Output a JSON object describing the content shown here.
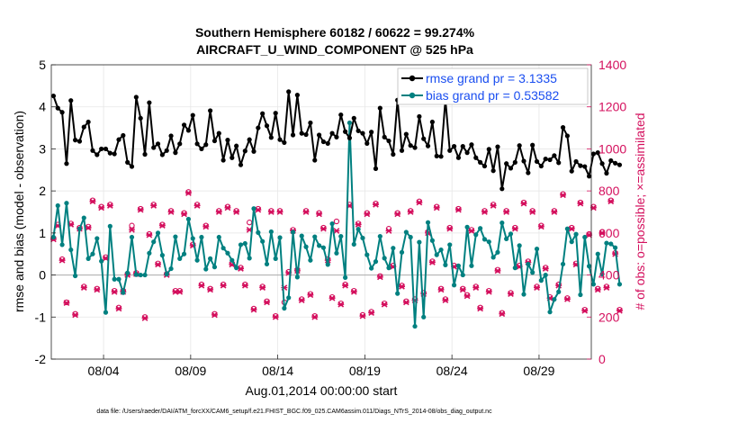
{
  "chart_data": {
    "type": "line",
    "title_line1": "Southern Hemisphere 60182 / 60622 = 99.274%",
    "title_line2": "AIRCRAFT_U_WIND_COMPONENT @ 525 hPa",
    "xlabel": "Aug.01,2014 00:00:00 start",
    "ylabel_left": "rmse and bias (model - observation)",
    "ylabel_right": "# of obs: o=possible; ×=assimilated",
    "footer": "data file: /Users/raeder/DAI/ATM_forcXX/CAM6_setup/f.e21.FHIST_BGC.f09_025.CAM6assim.011/Diags_NTrS_2014-08/obs_diag_output.nc",
    "ylim_left": [
      -2,
      5
    ],
    "ylim_right": [
      0,
      1400
    ],
    "yticks_left": [
      "-2",
      "-1",
      "0",
      "1",
      "2",
      "3",
      "4",
      "5"
    ],
    "yticks_right": [
      "0",
      "200",
      "400",
      "600",
      "800",
      "1000",
      "1200",
      "1400"
    ],
    "xlim_days": [
      1.0,
      32.0
    ],
    "xticks": [
      {
        "day": 4,
        "label": "08/04"
      },
      {
        "day": 9,
        "label": "08/09"
      },
      {
        "day": 14,
        "label": "08/14"
      },
      {
        "day": 19,
        "label": "08/19"
      },
      {
        "day": 24,
        "label": "08/24"
      },
      {
        "day": 29,
        "label": "08/29"
      }
    ],
    "time_start_day": 1.125,
    "time_step_days": 0.25,
    "grid": true,
    "legend_location": "top-right",
    "series": [
      {
        "name": "rmse grand pr = 3.1335",
        "color": "#000000",
        "axis": "left",
        "values": [
          4.26,
          3.97,
          3.87,
          2.65,
          4.15,
          3.21,
          3.18,
          3.52,
          3.64,
          2.96,
          2.86,
          3.0,
          3.0,
          2.9,
          2.88,
          3.22,
          3.32,
          2.68,
          2.58,
          4.23,
          3.73,
          2.87,
          4.1,
          3.03,
          3.12,
          2.86,
          2.96,
          3.31,
          2.91,
          3.12,
          3.57,
          3.44,
          3.8,
          3.12,
          3.0,
          3.1,
          3.91,
          3.19,
          3.37,
          2.73,
          3.21,
          2.79,
          3.07,
          2.62,
          2.95,
          3.22,
          2.94,
          3.5,
          3.84,
          3.55,
          3.27,
          3.85,
          3.22,
          3.15,
          4.36,
          3.33,
          4.28,
          3.37,
          3.34,
          3.62,
          2.73,
          3.33,
          3.17,
          3.13,
          3.37,
          3.28,
          3.81,
          3.41,
          3.26,
          3.73,
          3.43,
          3.37,
          3.13,
          3.4,
          2.53,
          3.97,
          3.28,
          3.19,
          2.87,
          4.16,
          2.96,
          3.35,
          3.08,
          3.03,
          3.77,
          3.24,
          3.07,
          3.64,
          2.83,
          2.82,
          4.18,
          2.96,
          3.06,
          2.79,
          3.06,
          2.91,
          3.1,
          2.79,
          2.68,
          2.59,
          2.99,
          2.48,
          3.05,
          2.05,
          2.65,
          2.54,
          2.68,
          3.08,
          2.71,
          2.43,
          3.09,
          2.7,
          2.59,
          2.76,
          2.74,
          2.84,
          2.67,
          3.51,
          3.31,
          2.47,
          2.7,
          2.6,
          2.58,
          2.35,
          2.88,
          2.91,
          2.65,
          2.42,
          2.72,
          2.66,
          2.62
        ]
      },
      {
        "name": "bias grand pr = 0.53582",
        "color": "#008080",
        "axis": "left",
        "values": [
          0.9,
          1.65,
          0.72,
          1.71,
          0.6,
          -0.02,
          1.1,
          1.36,
          0.39,
          0.5,
          0.87,
          0.33,
          -0.89,
          1.16,
          -0.1,
          -0.1,
          -0.42,
          0.05,
          0.9,
          0.01,
          0.0,
          0.0,
          0.52,
          0.79,
          1.0,
          0.47,
          0.02,
          0.15,
          0.91,
          0.39,
          0.5,
          1.33,
          0.87,
          0.35,
          0.9,
          0.14,
          0.39,
          0.19,
          0.9,
          0.64,
          0.52,
          0.35,
          0.17,
          0.72,
          0.75,
          0.4,
          1.58,
          1.01,
          0.8,
          0.26,
          1.03,
          0.39,
          0.89,
          -0.79,
          -0.54,
          1.02,
          -0.05,
          0.93,
          0.67,
          0.35,
          0.91,
          0.7,
          0.65,
          0.25,
          1.22,
          0.52,
          0.92,
          -0.06,
          3.62,
          0.73,
          1.09,
          0.88,
          0.48,
          0.16,
          0.32,
          0.92,
          0.4,
          0.17,
          0.64,
          -0.44,
          0.54,
          1.02,
          0.9,
          -1.22,
          0.78,
          -1.0,
          1.25,
          0.82,
          0.48,
          0.6,
          0.24,
          0.72,
          -0.24,
          0.22,
          0.0,
          1.14,
          0.22,
          0.96,
          1.11,
          0.85,
          0.79,
          0.42,
          0.54,
          1.24,
          0.86,
          0.98,
          0.17,
          0.7,
          -0.46,
          0.26,
          0.06,
          0.62,
          -0.13,
          0.0,
          -0.88,
          -0.58,
          -0.4,
          0.26,
          1.1,
          0.79,
          0.97,
          -0.47,
          0.9,
          0.21,
          -0.22,
          0.5,
          0.02,
          0.76,
          0.74,
          0.65,
          -0.22
        ]
      },
      {
        "name": "obs assimilated",
        "color": "#d40f5d",
        "axis": "right",
        "values": [
          570,
          635,
          470,
          267,
          640,
          210,
          620,
          340,
          625,
          750,
          330,
          720,
          480,
          730,
          320,
          240,
          320,
          400,
          615,
          405,
          710,
          195,
          590,
          730,
          450,
          635,
          400,
          700,
          320,
          320,
          690,
          790,
          540,
          730,
          350,
          630,
          330,
          210,
          700,
          350,
          720,
          450,
          700,
          430,
          350,
          615,
          235,
          710,
          340,
          270,
          700,
          200,
          700,
          340,
          410,
          610,
          420,
          280,
          700,
          305,
          200,
          690,
          620,
          470,
          290,
          610,
          260,
          350,
          730,
          320,
          640,
          205,
          690,
          220,
          735,
          390,
          260,
          610,
          440,
          690,
          345,
          270,
          700,
          280,
          745,
          310,
          600,
          460,
          720,
          330,
          280,
          620,
          440,
          710,
          330,
          300,
          610,
          340,
          240,
          700,
          320,
          730,
          420,
          215,
          700,
          310,
          620,
          440,
          740,
          460,
          700,
          340,
          630,
          430,
          290,
          700,
          350,
          780,
          285,
          620,
          450,
          740,
          230,
          590,
          720,
          330,
          600,
          340,
          750,
          500,
          230
        ]
      },
      {
        "name": "obs possible",
        "color": "#d40f5d",
        "axis": "right",
        "values": [
          575,
          640,
          475,
          270,
          645,
          215,
          625,
          345,
          630,
          755,
          335,
          725,
          485,
          735,
          325,
          245,
          325,
          405,
          635,
          410,
          715,
          200,
          595,
          735,
          455,
          640,
          405,
          705,
          325,
          325,
          695,
          795,
          545,
          735,
          355,
          635,
          335,
          215,
          705,
          355,
          725,
          455,
          705,
          435,
          355,
          650,
          240,
          715,
          345,
          275,
          705,
          205,
          705,
          270,
          415,
          615,
          425,
          285,
          705,
          310,
          205,
          695,
          625,
          475,
          295,
          655,
          265,
          355,
          735,
          325,
          645,
          210,
          695,
          225,
          740,
          395,
          265,
          620,
          445,
          695,
          350,
          275,
          705,
          285,
          750,
          315,
          605,
          465,
          725,
          335,
          285,
          625,
          445,
          715,
          335,
          305,
          615,
          345,
          245,
          705,
          325,
          735,
          425,
          220,
          705,
          315,
          625,
          445,
          745,
          465,
          705,
          345,
          635,
          435,
          295,
          705,
          355,
          785,
          290,
          625,
          455,
          745,
          235,
          595,
          725,
          335,
          605,
          345,
          755,
          505,
          235
        ]
      }
    ]
  }
}
